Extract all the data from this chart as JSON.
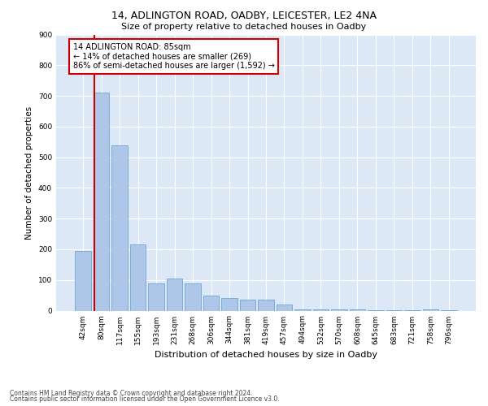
{
  "title1": "14, ADLINGTON ROAD, OADBY, LEICESTER, LE2 4NA",
  "title2": "Size of property relative to detached houses in Oadby",
  "xlabel": "Distribution of detached houses by size in Oadby",
  "ylabel": "Number of detached properties",
  "bins": [
    "42sqm",
    "80sqm",
    "117sqm",
    "155sqm",
    "193sqm",
    "231sqm",
    "268sqm",
    "306sqm",
    "344sqm",
    "381sqm",
    "419sqm",
    "457sqm",
    "494sqm",
    "532sqm",
    "570sqm",
    "608sqm",
    "645sqm",
    "683sqm",
    "721sqm",
    "758sqm",
    "796sqm"
  ],
  "values": [
    195,
    710,
    540,
    215,
    90,
    105,
    90,
    50,
    40,
    35,
    35,
    20,
    5,
    5,
    5,
    5,
    2,
    2,
    1,
    5,
    1
  ],
  "bar_color": "#aec6e8",
  "bar_edge_color": "#5b9bd5",
  "vline_color": "#cc0000",
  "annotation_text": "14 ADLINGTON ROAD: 85sqm\n← 14% of detached houses are smaller (269)\n86% of semi-detached houses are larger (1,592) →",
  "annotation_box_color": "#ffffff",
  "annotation_box_edge": "#cc0000",
  "footnote1": "Contains HM Land Registry data © Crown copyright and database right 2024.",
  "footnote2": "Contains public sector information licensed under the Open Government Licence v3.0.",
  "ylim": [
    0,
    900
  ],
  "yticks": [
    0,
    100,
    200,
    300,
    400,
    500,
    600,
    700,
    800,
    900
  ],
  "background_color": "#ffffff",
  "plot_bg_color": "#dce8f5",
  "title1_fontsize": 9,
  "title2_fontsize": 8,
  "xlabel_fontsize": 8,
  "ylabel_fontsize": 7.5,
  "tick_fontsize": 6.5,
  "footnote_fontsize": 5.5
}
